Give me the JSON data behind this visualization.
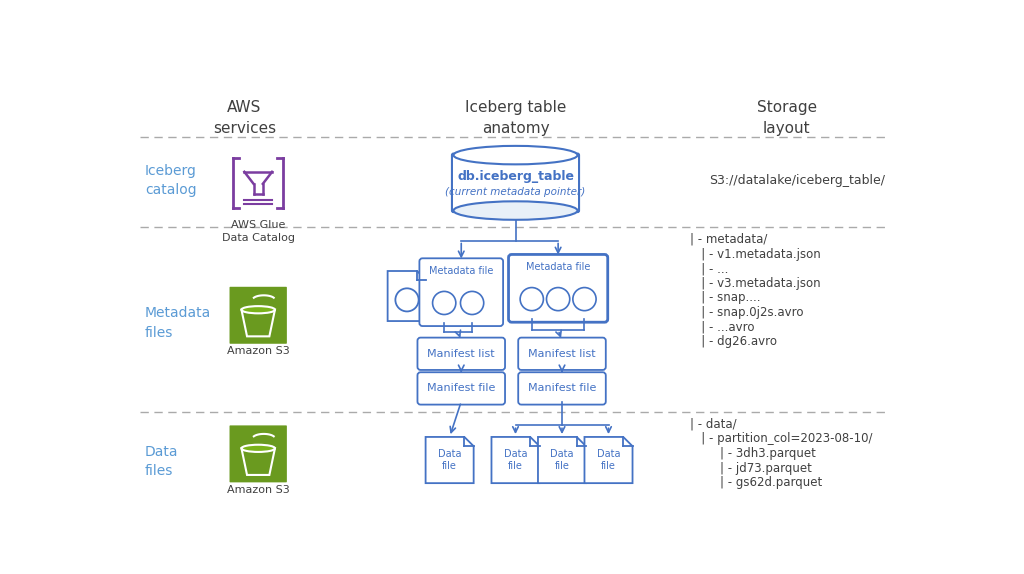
{
  "title_col1": "AWS\nservices",
  "title_col2": "Iceberg table\nanatomy",
  "title_col3": "Storage\nlayout",
  "label_catalog": "Iceberg\ncatalog",
  "label_metadata": "Metadata\nfiles",
  "label_data": "Data\nfiles",
  "aws_glue_label": "AWS Glue\nData Catalog",
  "amazon_s3_label1": "Amazon S3",
  "amazon_s3_label2": "Amazon S3",
  "s3_path": "S3://datalake/iceberg_table/",
  "metadata_path_lines": [
    "| - metadata/",
    "   | - v1.metadata.json",
    "   | - ...",
    "   | - v3.metadata.json",
    "   | - snap....",
    "   | - snap.0j2s.avro",
    "   | - ...avro",
    "   | - dg26.avro"
  ],
  "data_path_lines": [
    "| - data/",
    "   | - partition_col=2023-08-10/",
    "        | - 3dh3.parquet",
    "        | - jd73.parquet",
    "        | - gs62d.parquet"
  ],
  "light_blue": "#4472C4",
  "purple": "#7B3DA0",
  "green_dark": "#6A9A1F",
  "green_light": "#7AB31A",
  "dashed_color": "#AAAAAA",
  "bg": "#FFFFFF",
  "text_dark": "#404040",
  "text_blue": "#4472C4",
  "label_color": "#5B9BD5"
}
